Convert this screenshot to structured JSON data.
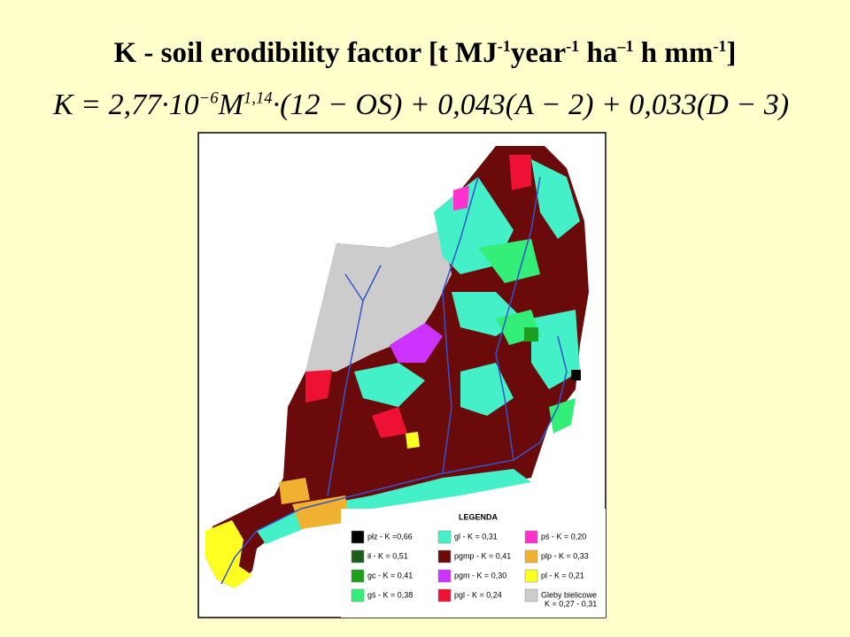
{
  "title": {
    "segments": [
      {
        "text": "K - soil erodibility factor [t MJ",
        "sup": false
      },
      {
        "text": "-1",
        "sup": true
      },
      {
        "text": "year",
        "sup": false
      },
      {
        "text": "-1",
        "sup": true
      },
      {
        "text": " ha",
        "sup": false
      },
      {
        "text": "–1",
        "sup": true
      },
      {
        "text": " h mm",
        "sup": false
      },
      {
        "text": "-1",
        "sup": true
      },
      {
        "text": "]",
        "sup": false
      }
    ]
  },
  "formula": {
    "segments": [
      {
        "text": "K = 2,77·10",
        "sup": false
      },
      {
        "text": "−6",
        "sup": true
      },
      {
        "text": "M",
        "sup": false
      },
      {
        "text": "1,14",
        "sup": true
      },
      {
        "text": "·(12 − OS) + 0,043(A − 2) + 0,033(D − 3)",
        "sup": false
      }
    ]
  },
  "legend": {
    "title": "LEGENDA",
    "entries": [
      {
        "label": "płz - K =0,66",
        "color": "#000000"
      },
      {
        "label": "ił - K = 0,51",
        "color": "#1a5c1a"
      },
      {
        "label": "gc - K = 0,41",
        "color": "#1e9e1e"
      },
      {
        "label": "gś - K = 0,38",
        "color": "#33ee77"
      },
      {
        "label": "gl - K = 0,31",
        "color": "#44f0c8"
      },
      {
        "label": "pgmp - K = 0,41",
        "color": "#6b0a0a"
      },
      {
        "label": "pgm - K = 0,30",
        "color": "#cc33ff"
      },
      {
        "label": "pgl - K = 0,24",
        "color": "#ee1133"
      },
      {
        "label": "pś - K = 0,20",
        "color": "#ff33cc"
      },
      {
        "label": "plp - K = 0,33",
        "color": "#f0b030"
      },
      {
        "label": "pl - K = 0,21",
        "color": "#ffff22"
      },
      {
        "label": "Gleby bielicowe",
        "label2": "K = 0,27 - 0,31",
        "color": "#cccccc"
      }
    ]
  }
}
